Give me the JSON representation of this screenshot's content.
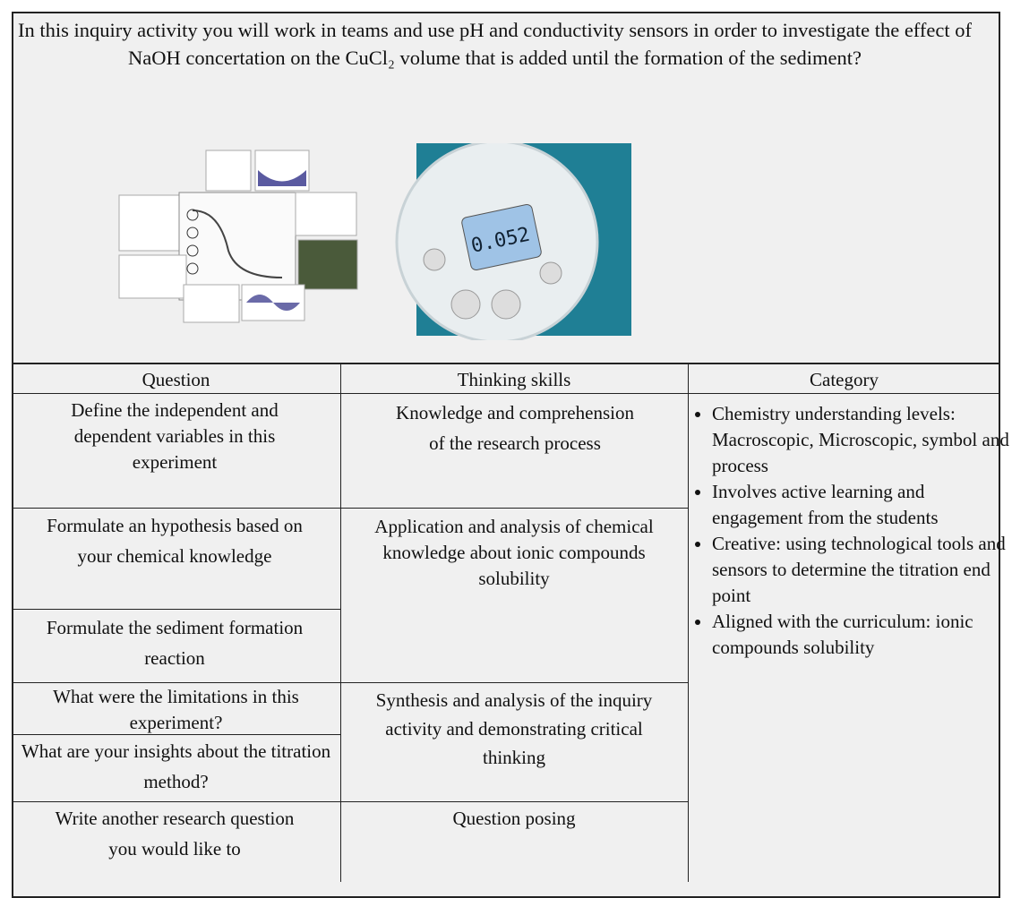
{
  "intro": "In this inquiry activity you will work in teams and use pH and conductivity sensors in order to investigate the effect of NaOH concertation on the CuCl₂ volume that is added until the formation of the sediment?",
  "table": {
    "headers": [
      "Question",
      "Thinking skills",
      "Category"
    ],
    "questions": [
      "Define the independent and dependent variables in this experiment",
      "Formulate an hypothesis based on your chemical knowledge",
      "Formulate the sediment formation reaction",
      "What were the limitations in this experiment?",
      "What are your insights about the titration method?",
      "Write another research question you would like to"
    ],
    "thinking_skills": [
      "Knowledge and comprehension of the research process",
      "Application and analysis of chemical knowledge about ionic compounds solubility",
      "Synthesis and analysis of the inquiry activity and demonstrating critical thinking",
      "Question posing"
    ],
    "category": [
      "Chemistry understanding levels: Macroscopic, Microscopic, symbol and process",
      "Involves active learning and engagement from the students",
      "Creative: using technological tools and sensors to determine the titration end point",
      "Aligned with the curriculum: ionic compounds solubility"
    ]
  }
}
